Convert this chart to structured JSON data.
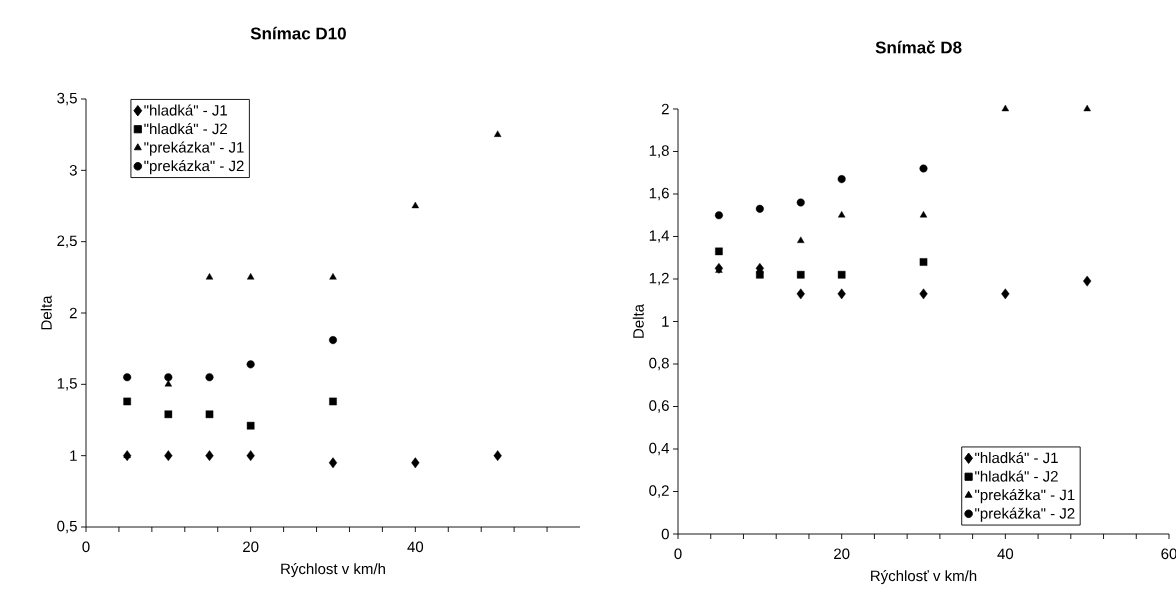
{
  "chart_data": [
    {
      "type": "scatter",
      "title": "Snímac D10",
      "xlabel": "Rýchlost v km/h",
      "ylabel": "Delta",
      "xlim": [
        0,
        60
      ],
      "ylim": [
        0.5,
        3.5
      ],
      "xticks": [
        0,
        {
          "value": 4,
          "label": null
        },
        {
          "value": 8,
          "label": null
        },
        {
          "value": 12,
          "label": null
        },
        {
          "value": 16,
          "label": null
        },
        20,
        {
          "value": 24,
          "label": null
        },
        {
          "value": 28,
          "label": null
        },
        {
          "value": 32,
          "label": null
        },
        {
          "value": 36,
          "label": null
        },
        40,
        {
          "value": 44,
          "label": null
        },
        {
          "value": 48,
          "label": null
        },
        {
          "value": 52,
          "label": null
        },
        {
          "value": 56,
          "label": null
        }
      ],
      "yticks": [
        {
          "value": 0.5,
          "label": "0,5"
        },
        1,
        {
          "value": 1.5,
          "label": "1,5"
        },
        2,
        {
          "value": 2.5,
          "label": "2,5"
        },
        3,
        {
          "value": 3.5,
          "label": "3,5"
        }
      ],
      "grid": false,
      "legend": "top left",
      "series": [
        {
          "name": "\"hladká\" - J1",
          "color": "#000000",
          "marker": "diamond",
          "x": [
            5,
            10,
            15,
            20,
            30,
            40,
            50
          ],
          "values": [
            1,
            1,
            1,
            1,
            0.95,
            0.95,
            1
          ]
        },
        {
          "name": "\"hladká\" - J2",
          "color": "#000000",
          "marker": "square",
          "x": [
            5,
            10,
            15,
            20,
            30
          ],
          "values": [
            1.38,
            1.29,
            1.29,
            1.21,
            1.38
          ]
        },
        {
          "name": "\"prekázka\" - J1",
          "color": "#000000",
          "marker": "triangle",
          "x": [
            5,
            10,
            15,
            20,
            30,
            40,
            50
          ],
          "values": [
            1,
            1.5,
            2.25,
            2.25,
            2.25,
            2.75,
            3.25
          ]
        },
        {
          "name": "\"prekázka\" - J2",
          "color": "#000000",
          "marker": "circle",
          "x": [
            5,
            10,
            15,
            20,
            30
          ],
          "values": [
            1.55,
            1.55,
            1.55,
            1.64,
            1.81
          ]
        }
      ]
    },
    {
      "type": "scatter",
      "title": "Snímač D8",
      "xlabel": "Rýchlosť v km/h",
      "ylabel": "Delta",
      "xlim": [
        0,
        60
      ],
      "ylim": [
        0,
        2
      ],
      "xticks": [
        0,
        {
          "value": 4,
          "label": null
        },
        {
          "value": 8,
          "label": null
        },
        {
          "value": 12,
          "label": null
        },
        {
          "value": 16,
          "label": null
        },
        20,
        {
          "value": 24,
          "label": null
        },
        {
          "value": 28,
          "label": null
        },
        {
          "value": 32,
          "label": null
        },
        {
          "value": 36,
          "label": null
        },
        40,
        {
          "value": 44,
          "label": null
        },
        {
          "value": 48,
          "label": null
        },
        {
          "value": 52,
          "label": null
        },
        {
          "value": 56,
          "label": null
        },
        60
      ],
      "yticks": [
        0,
        {
          "value": 0.2,
          "label": "0,2"
        },
        {
          "value": 0.4,
          "label": "0,4"
        },
        {
          "value": 0.6,
          "label": "0,6"
        },
        {
          "value": 0.8,
          "label": "0,8"
        },
        1,
        {
          "value": 1.2,
          "label": "1,2"
        },
        {
          "value": 1.4,
          "label": "1,4"
        },
        {
          "value": 1.6,
          "label": "1,6"
        },
        {
          "value": 1.8,
          "label": "1,8"
        },
        2
      ],
      "grid": false,
      "legend": "bottom right",
      "series": [
        {
          "name": "\"hladká\" - J1",
          "color": "#000000",
          "marker": "diamond",
          "x": [
            5,
            10,
            15,
            20,
            30,
            40,
            50
          ],
          "values": [
            1.25,
            1.25,
            1.13,
            1.13,
            1.13,
            1.13,
            1.19
          ]
        },
        {
          "name": "\"hladká\" - J2",
          "color": "#000000",
          "marker": "square",
          "x": [
            5,
            10,
            15,
            20,
            30
          ],
          "values": [
            1.33,
            1.22,
            1.22,
            1.22,
            1.28
          ]
        },
        {
          "name": "\"prekážka\" - J1",
          "color": "#000000",
          "marker": "triangle",
          "x": [
            5,
            10,
            15,
            20,
            30,
            40,
            50
          ],
          "values": [
            1.24,
            1.24,
            1.38,
            1.5,
            1.5,
            2,
            2
          ]
        },
        {
          "name": "\"prekážka\" - J2",
          "color": "#000000",
          "marker": "circle",
          "x": [
            5,
            10,
            15,
            20,
            30
          ],
          "values": [
            1.5,
            1.53,
            1.56,
            1.67,
            1.72
          ]
        }
      ]
    }
  ]
}
